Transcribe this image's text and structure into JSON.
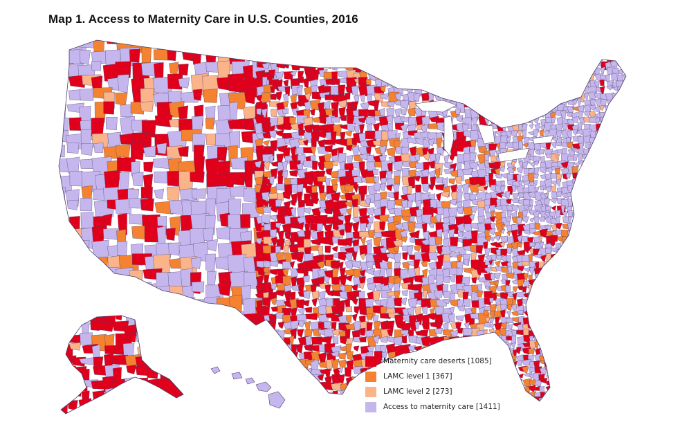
{
  "map": {
    "title": "Map 1. Access to Maternity Care in U.S. Counties, 2016",
    "legend": [
      {
        "label": "Maternity care deserts [1085]",
        "color": "#e0001b",
        "count": 1085
      },
      {
        "label": "LAMC level 1 [367]",
        "color": "#f58230",
        "count": 367
      },
      {
        "label": "LAMC level 2 [273]",
        "color": "#fbb38a",
        "count": 273
      },
      {
        "label": "Access to maternity care [1411]",
        "color": "#c6b6ee",
        "count": 1411
      }
    ],
    "colors": {
      "desert": "#e0001b",
      "lamc1": "#f58230",
      "lamc2": "#fbb38a",
      "access": "#c6b6ee",
      "border": "#4a3f66"
    }
  }
}
